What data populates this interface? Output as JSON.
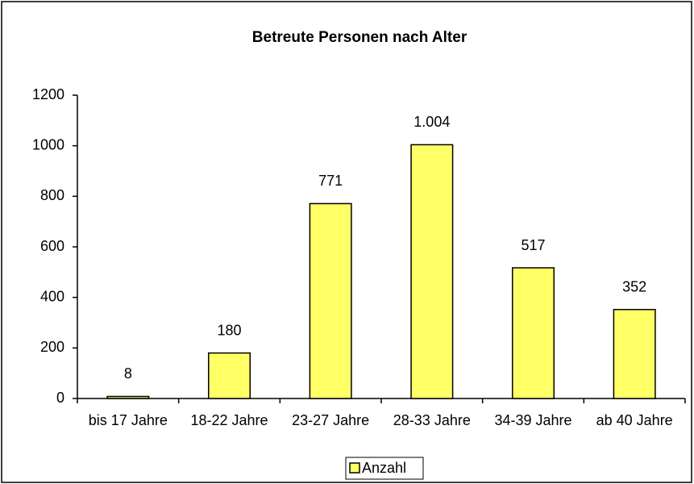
{
  "chart_data": {
    "type": "bar",
    "title": "Betreute Personen nach Alter",
    "categories": [
      "bis 17 Jahre",
      "18-22 Jahre",
      "23-27 Jahre",
      "28-33 Jahre",
      "34-39 Jahre",
      "ab 40 Jahre"
    ],
    "series": [
      {
        "name": "Anzahl",
        "color": "#ffff66",
        "values": [
          8,
          180,
          771,
          1004,
          517,
          352
        ],
        "value_labels": [
          "8",
          "180",
          "771",
          "1.004",
          "517",
          "352"
        ]
      }
    ],
    "ylim": [
      0,
      1200
    ],
    "yticks": [
      0,
      200,
      400,
      600,
      800,
      1000,
      1200
    ],
    "grid": false,
    "legend": "bottom"
  }
}
